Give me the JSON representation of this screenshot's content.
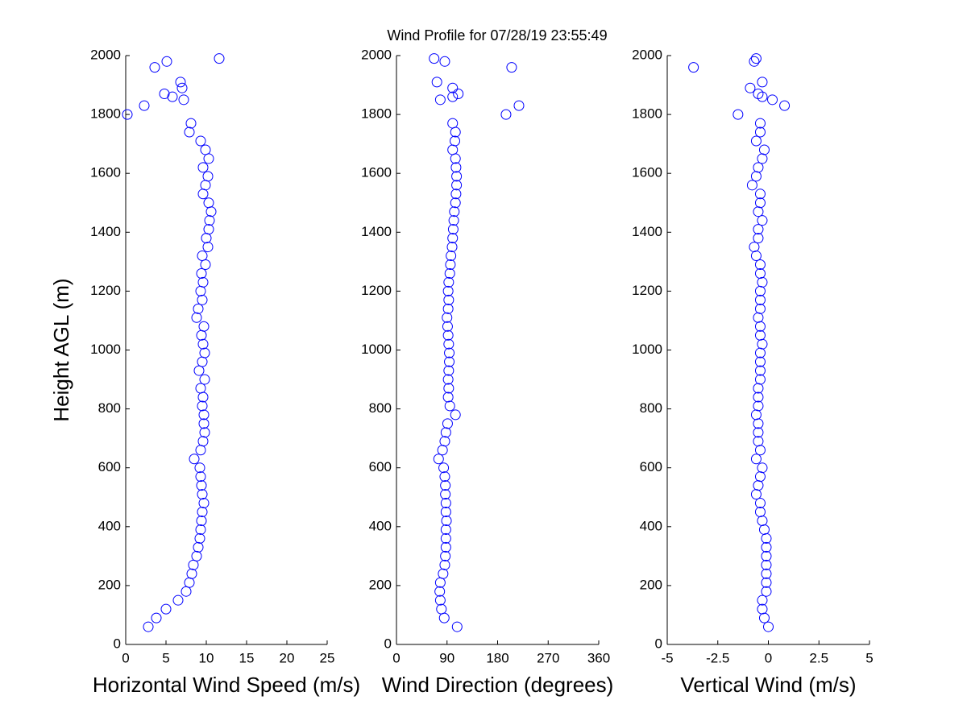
{
  "chart_data": [
    {
      "type": "scatter",
      "title": "Wind Profile for  07/28/19 23:55:49",
      "xlabel": "Horizontal Wind Speed (m/s)",
      "ylabel": "Height AGL (m)",
      "color": "#0000ff",
      "xlim": [
        0,
        25
      ],
      "xticks": [
        0,
        5,
        10,
        15,
        20,
        25
      ],
      "ylim": [
        0,
        2000
      ],
      "yticks": [
        0,
        200,
        400,
        600,
        800,
        1000,
        1200,
        1400,
        1600,
        1800,
        2000
      ],
      "y": [
        60,
        90,
        120,
        150,
        180,
        210,
        240,
        270,
        300,
        330,
        360,
        390,
        420,
        450,
        480,
        510,
        540,
        570,
        600,
        630,
        660,
        690,
        720,
        750,
        780,
        810,
        840,
        870,
        900,
        930,
        960,
        990,
        1020,
        1050,
        1080,
        1110,
        1140,
        1170,
        1200,
        1230,
        1260,
        1290,
        1320,
        1350,
        1380,
        1410,
        1440,
        1470,
        1500,
        1530,
        1560,
        1590,
        1620,
        1650,
        1680,
        1710,
        1740,
        1770,
        1800,
        1830,
        1850,
        1860,
        1870,
        1890,
        1910,
        1960,
        1980,
        1990
      ],
      "x": [
        2.8,
        3.8,
        5.0,
        6.5,
        7.5,
        7.9,
        8.2,
        8.4,
        8.8,
        9.0,
        9.2,
        9.3,
        9.4,
        9.5,
        9.7,
        9.5,
        9.4,
        9.3,
        9.2,
        8.5,
        9.3,
        9.6,
        9.8,
        9.7,
        9.7,
        9.5,
        9.6,
        9.3,
        9.8,
        9.1,
        9.5,
        9.8,
        9.6,
        9.4,
        9.7,
        8.8,
        9.0,
        9.5,
        9.3,
        9.6,
        9.4,
        9.9,
        9.5,
        10.2,
        10.0,
        10.3,
        10.4,
        10.6,
        10.3,
        9.6,
        9.9,
        10.2,
        9.6,
        10.3,
        9.9,
        9.3,
        7.9,
        8.1,
        0.2,
        2.3,
        7.2,
        5.8,
        4.8,
        7.0,
        6.8,
        3.6,
        5.1,
        11.6
      ]
    },
    {
      "type": "scatter",
      "xlabel": "Wind Direction (degrees)",
      "color": "#0000ff",
      "xlim": [
        0,
        360
      ],
      "xticks": [
        0,
        90,
        180,
        270,
        360
      ],
      "ylim": [
        0,
        2000
      ],
      "yticks": [
        0,
        200,
        400,
        600,
        800,
        1000,
        1200,
        1400,
        1600,
        1800,
        2000
      ],
      "y": [
        60,
        90,
        120,
        150,
        180,
        210,
        240,
        270,
        300,
        330,
        360,
        390,
        420,
        450,
        480,
        510,
        540,
        570,
        600,
        630,
        660,
        690,
        720,
        750,
        780,
        810,
        840,
        870,
        900,
        930,
        960,
        990,
        1020,
        1050,
        1080,
        1110,
        1140,
        1170,
        1200,
        1230,
        1260,
        1290,
        1320,
        1350,
        1380,
        1410,
        1440,
        1470,
        1500,
        1530,
        1560,
        1590,
        1620,
        1650,
        1680,
        1710,
        1740,
        1770,
        1800,
        1830,
        1850,
        1860,
        1870,
        1890,
        1910,
        1960,
        1980,
        1990
      ],
      "x": [
        108,
        85,
        80,
        78,
        77,
        78,
        83,
        86,
        87,
        88,
        88,
        88,
        89,
        88,
        88,
        87,
        87,
        86,
        84,
        75,
        82,
        86,
        88,
        91,
        105,
        95,
        92,
        93,
        92,
        93,
        94,
        94,
        93,
        92,
        91,
        90,
        92,
        93,
        92,
        93,
        95,
        96,
        97,
        99,
        100,
        101,
        102,
        103,
        105,
        106,
        107,
        107,
        106,
        105,
        100,
        104,
        105,
        100,
        195,
        218,
        78,
        100,
        110,
        100,
        72,
        205,
        86,
        67
      ]
    },
    {
      "type": "scatter",
      "xlabel": "Vertical Wind (m/s)",
      "color": "#0000ff",
      "xlim": [
        -5,
        5
      ],
      "xticks": [
        -5,
        -2.5,
        0,
        2.5,
        5
      ],
      "ylim": [
        0,
        2000
      ],
      "yticks": [
        0,
        200,
        400,
        600,
        800,
        1000,
        1200,
        1400,
        1600,
        1800,
        2000
      ],
      "y": [
        60,
        90,
        120,
        150,
        180,
        210,
        240,
        270,
        300,
        330,
        360,
        390,
        420,
        450,
        480,
        510,
        540,
        570,
        600,
        630,
        660,
        690,
        720,
        750,
        780,
        810,
        840,
        870,
        900,
        930,
        960,
        990,
        1020,
        1050,
        1080,
        1110,
        1140,
        1170,
        1200,
        1230,
        1260,
        1290,
        1320,
        1350,
        1380,
        1410,
        1440,
        1470,
        1500,
        1530,
        1560,
        1590,
        1620,
        1650,
        1680,
        1710,
        1740,
        1770,
        1800,
        1830,
        1850,
        1860,
        1870,
        1890,
        1910,
        1960,
        1980,
        1990
      ],
      "x": [
        0,
        -0.2,
        -0.3,
        -0.3,
        -0.1,
        -0.1,
        -0.1,
        -0.1,
        -0.1,
        -0.1,
        -0.1,
        -0.2,
        -0.3,
        -0.4,
        -0.4,
        -0.6,
        -0.5,
        -0.4,
        -0.3,
        -0.6,
        -0.4,
        -0.5,
        -0.5,
        -0.5,
        -0.6,
        -0.5,
        -0.5,
        -0.5,
        -0.4,
        -0.4,
        -0.4,
        -0.4,
        -0.3,
        -0.4,
        -0.4,
        -0.5,
        -0.4,
        -0.4,
        -0.4,
        -0.3,
        -0.4,
        -0.4,
        -0.6,
        -0.7,
        -0.5,
        -0.5,
        -0.3,
        -0.5,
        -0.4,
        -0.4,
        -0.8,
        -0.6,
        -0.5,
        -0.3,
        -0.2,
        -0.6,
        -0.4,
        -0.4,
        -1.5,
        0.8,
        0.2,
        -0.3,
        -0.5,
        -0.9,
        -0.3,
        -3.7,
        -0.7,
        -0.6
      ]
    }
  ]
}
